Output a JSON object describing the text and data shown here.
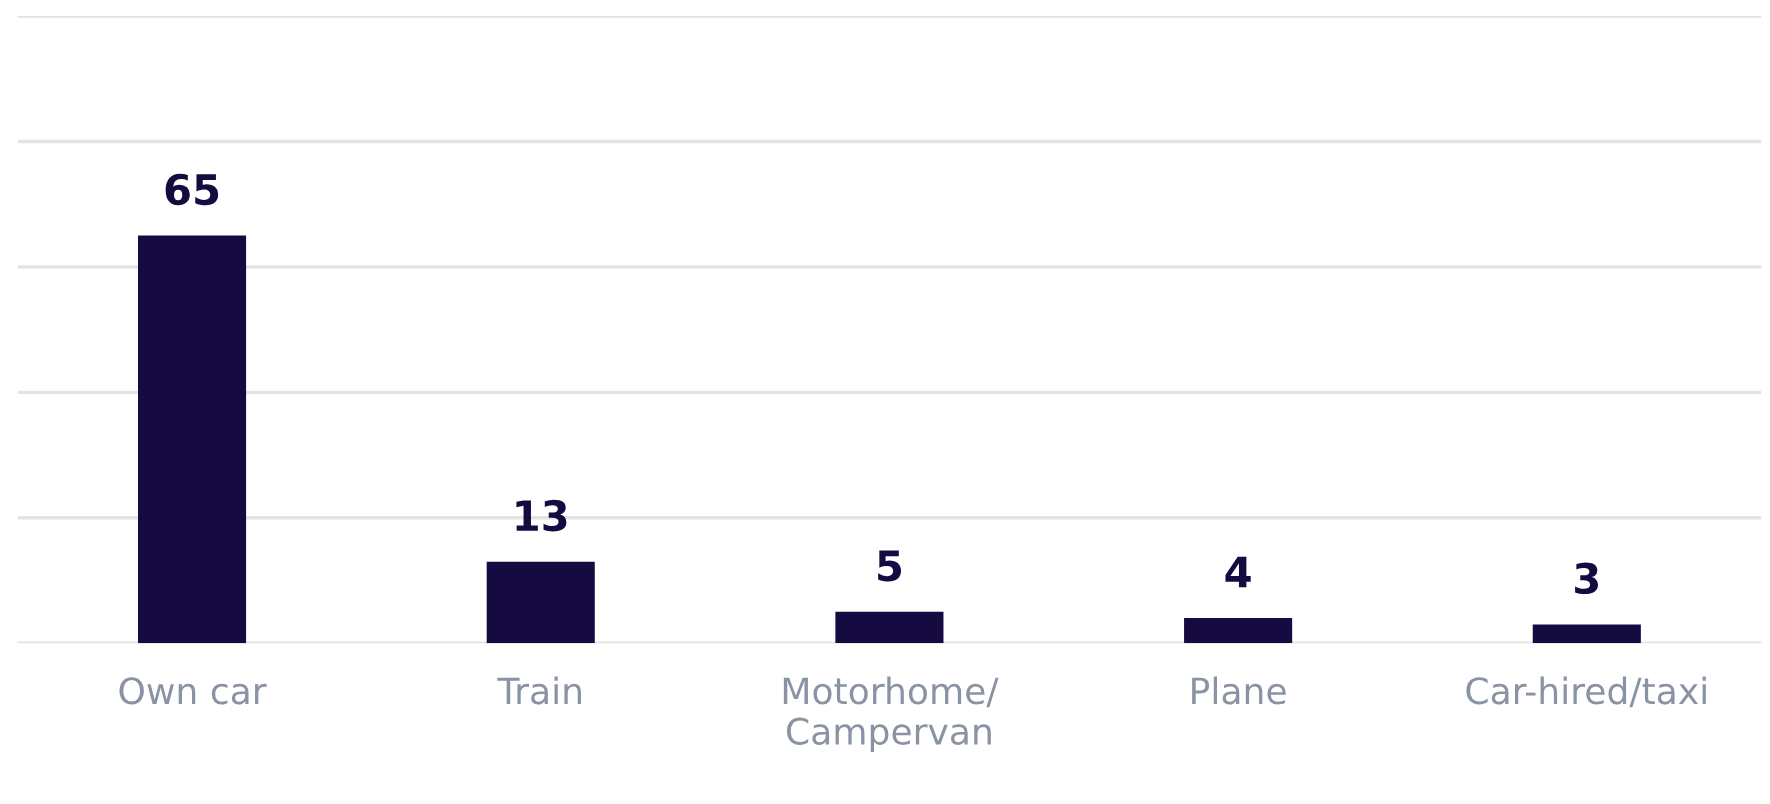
{
  "chart_data": {
    "type": "bar",
    "categories": [
      "Own car",
      "Train",
      "Motorhome/\nCampervan",
      "Plane",
      "Car-hired/taxi"
    ],
    "values": [
      65,
      13,
      5,
      4,
      3
    ],
    "color": "#150b40",
    "data_labels": true,
    "ylim": [
      0,
      100
    ],
    "yticks": [
      {
        "value": 0,
        "label": null
      },
      {
        "value": 20,
        "label": null
      },
      {
        "value": 40,
        "label": null
      },
      {
        "value": 60,
        "label": null
      },
      {
        "value": 80,
        "label": null
      },
      {
        "value": 100,
        "label": null
      }
    ],
    "tick_labels": "x",
    "grid": "y"
  }
}
